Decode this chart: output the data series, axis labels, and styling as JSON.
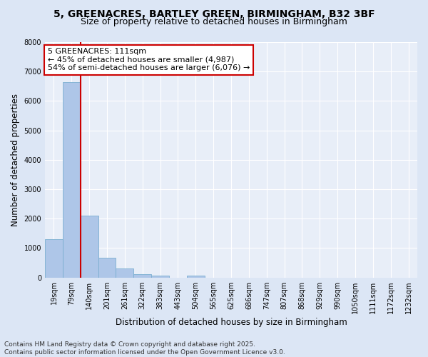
{
  "title_line1": "5, GREENACRES, BARTLEY GREEN, BIRMINGHAM, B32 3BF",
  "title_line2": "Size of property relative to detached houses in Birmingham",
  "xlabel": "Distribution of detached houses by size in Birmingham",
  "ylabel": "Number of detached properties",
  "categories": [
    "19sqm",
    "79sqm",
    "140sqm",
    "201sqm",
    "261sqm",
    "322sqm",
    "383sqm",
    "443sqm",
    "504sqm",
    "565sqm",
    "625sqm",
    "686sqm",
    "747sqm",
    "807sqm",
    "868sqm",
    "929sqm",
    "990sqm",
    "1050sqm",
    "1111sqm",
    "1172sqm",
    "1232sqm"
  ],
  "values": [
    1300,
    6630,
    2100,
    680,
    310,
    110,
    65,
    0,
    55,
    0,
    0,
    0,
    0,
    0,
    0,
    0,
    0,
    0,
    0,
    0,
    0
  ],
  "bar_color": "#aec6e8",
  "bar_edge_color": "#7aaed0",
  "red_line_x": 1.5,
  "annotation_text_line1": "5 GREENACRES: 111sqm",
  "annotation_text_line2": "← 45% of detached houses are smaller (4,987)",
  "annotation_text_line3": "54% of semi-detached houses are larger (6,076) →",
  "annotation_box_color": "#ffffff",
  "annotation_box_edge_color": "#cc0000",
  "ylim": [
    0,
    8000
  ],
  "yticks": [
    0,
    1000,
    2000,
    3000,
    4000,
    5000,
    6000,
    7000,
    8000
  ],
  "bg_color": "#dce6f5",
  "plot_bg_color": "#e8eef8",
  "footer_line1": "Contains HM Land Registry data © Crown copyright and database right 2025.",
  "footer_line2": "Contains public sector information licensed under the Open Government Licence v3.0.",
  "title_fontsize": 10,
  "subtitle_fontsize": 9,
  "tick_fontsize": 7,
  "ylabel_fontsize": 8.5,
  "xlabel_fontsize": 8.5,
  "annot_fontsize": 8,
  "footer_fontsize": 6.5
}
